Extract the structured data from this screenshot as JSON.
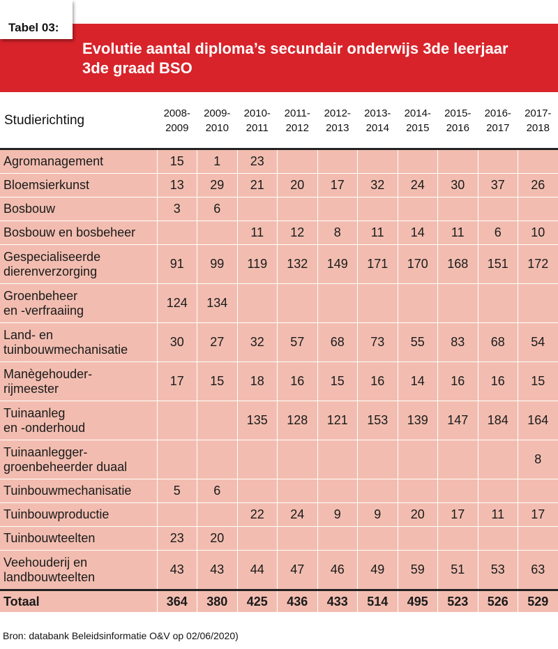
{
  "header": {
    "tag": "Tabel 03:",
    "title_line1": "Evolutie aantal diploma’s secundair onderwijs 3de leerjaar",
    "title_line2": "3de graad BSO"
  },
  "colors": {
    "banner": "#d8232a",
    "cell_background": "#f2bdb0",
    "title_text": "#ffffff"
  },
  "chart_data": {
    "type": "table",
    "row_header_label": "Studierichting",
    "columns": [
      [
        "2008-",
        "2009"
      ],
      [
        "2009-",
        "2010"
      ],
      [
        "2010-",
        "2011"
      ],
      [
        "2011-",
        "2012"
      ],
      [
        "2012-",
        "2013"
      ],
      [
        "2013-",
        "2014"
      ],
      [
        "2014-",
        "2015"
      ],
      [
        "2015-",
        "2016"
      ],
      [
        "2016-",
        "2017"
      ],
      [
        "2017-",
        "2018"
      ]
    ],
    "rows": [
      {
        "label": [
          "Agromanagement"
        ],
        "values": [
          "15",
          "1",
          "23",
          "",
          "",
          "",
          "",
          "",
          "",
          ""
        ]
      },
      {
        "label": [
          "Bloemsierkunst"
        ],
        "values": [
          "13",
          "29",
          "21",
          "20",
          "17",
          "32",
          "24",
          "30",
          "37",
          "26"
        ]
      },
      {
        "label": [
          "Bosbouw"
        ],
        "values": [
          "3",
          "6",
          "",
          "",
          "",
          "",
          "",
          "",
          "",
          ""
        ]
      },
      {
        "label": [
          "Bosbouw en bosbeheer"
        ],
        "values": [
          "",
          "",
          "11",
          "12",
          "8",
          "11",
          "14",
          "11",
          "6",
          "10"
        ]
      },
      {
        "label": [
          "Gespecialiseerde",
          "dierenverzorging"
        ],
        "values": [
          "91",
          "99",
          "119",
          "132",
          "149",
          "171",
          "170",
          "168",
          "151",
          "172"
        ]
      },
      {
        "label": [
          "Groenbeheer",
          "en -verfraaiing"
        ],
        "values": [
          "124",
          "134",
          "",
          "",
          "",
          "",
          "",
          "",
          "",
          ""
        ]
      },
      {
        "label": [
          "Land- en",
          "tuinbouwmechanisatie"
        ],
        "values": [
          "30",
          "27",
          "32",
          "57",
          "68",
          "73",
          "55",
          "83",
          "68",
          "54"
        ]
      },
      {
        "label": [
          "Manègehouder-",
          "rijmeester"
        ],
        "values": [
          "17",
          "15",
          "18",
          "16",
          "15",
          "16",
          "14",
          "16",
          "16",
          "15"
        ]
      },
      {
        "label": [
          "Tuinaanleg",
          " en -onderhoud"
        ],
        "values": [
          "",
          "",
          "135",
          "128",
          "121",
          "153",
          "139",
          "147",
          "184",
          "164"
        ]
      },
      {
        "label": [
          "Tuinaanlegger-",
          "groenbeheerder duaal"
        ],
        "values": [
          "",
          "",
          "",
          "",
          "",
          "",
          "",
          "",
          "",
          "8"
        ]
      },
      {
        "label": [
          "Tuinbouwmechanisatie"
        ],
        "values": [
          "5",
          "6",
          "",
          "",
          "",
          "",
          "",
          "",
          "",
          ""
        ]
      },
      {
        "label": [
          "Tuinbouwproductie"
        ],
        "values": [
          "",
          "",
          "22",
          "24",
          "9",
          "9",
          "20",
          "17",
          "11",
          "17"
        ]
      },
      {
        "label": [
          "Tuinbouwteelten"
        ],
        "values": [
          "23",
          "20",
          "",
          "",
          "",
          "",
          "",
          "",
          "",
          ""
        ]
      },
      {
        "label": [
          "Veehouderij en",
          "landbouwteelten"
        ],
        "values": [
          "43",
          "43",
          "44",
          "47",
          "46",
          "49",
          "59",
          "51",
          "53",
          "63"
        ]
      }
    ],
    "total": {
      "label": "Totaal",
      "values": [
        "364",
        "380",
        "425",
        "436",
        "433",
        "514",
        "495",
        "523",
        "526",
        "529"
      ]
    }
  },
  "footer": {
    "source": "Bron: databank Beleidsinformatie O&V op 02/06/2020)"
  }
}
